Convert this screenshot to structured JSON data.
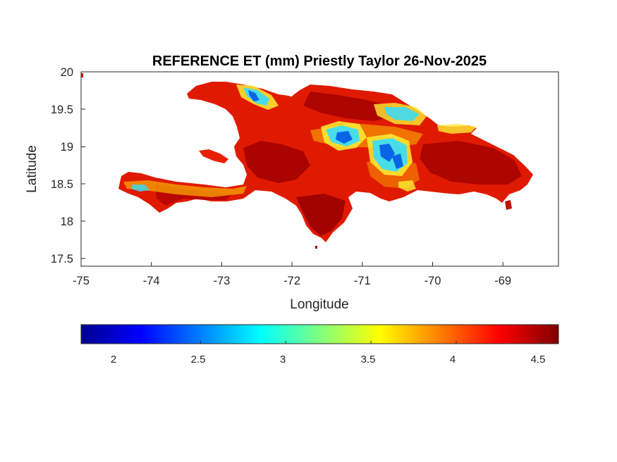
{
  "title": "REFERENCE ET (mm) Priestly Taylor 26-Nov-2025",
  "x_axis": {
    "label": "Longitude",
    "ticks": [
      "-75",
      "-74",
      "-73",
      "-72",
      "-71",
      "-70",
      "-69"
    ]
  },
  "y_axis": {
    "label": "Latitude",
    "ticks": [
      "20",
      "19.5",
      "19",
      "18.5",
      "18",
      "17.5"
    ]
  },
  "colorbar": {
    "colormap": "jet",
    "range": [
      1.8,
      4.6
    ],
    "ticks": [
      "2",
      "2.5",
      "3",
      "3.5",
      "4",
      "4.5"
    ]
  },
  "colors": {
    "high_et": "#8b0000",
    "mid_high_et": "#e81a00",
    "mid_et": "#f7a000",
    "low_et": "#2ad4ff",
    "lowest_et": "#0a64e6"
  },
  "map_extent": {
    "lon": [
      -75,
      -68.25
    ],
    "lat": [
      17.4,
      20
    ]
  },
  "region": "Hispaniola (Haiti and Dominican Republic)"
}
